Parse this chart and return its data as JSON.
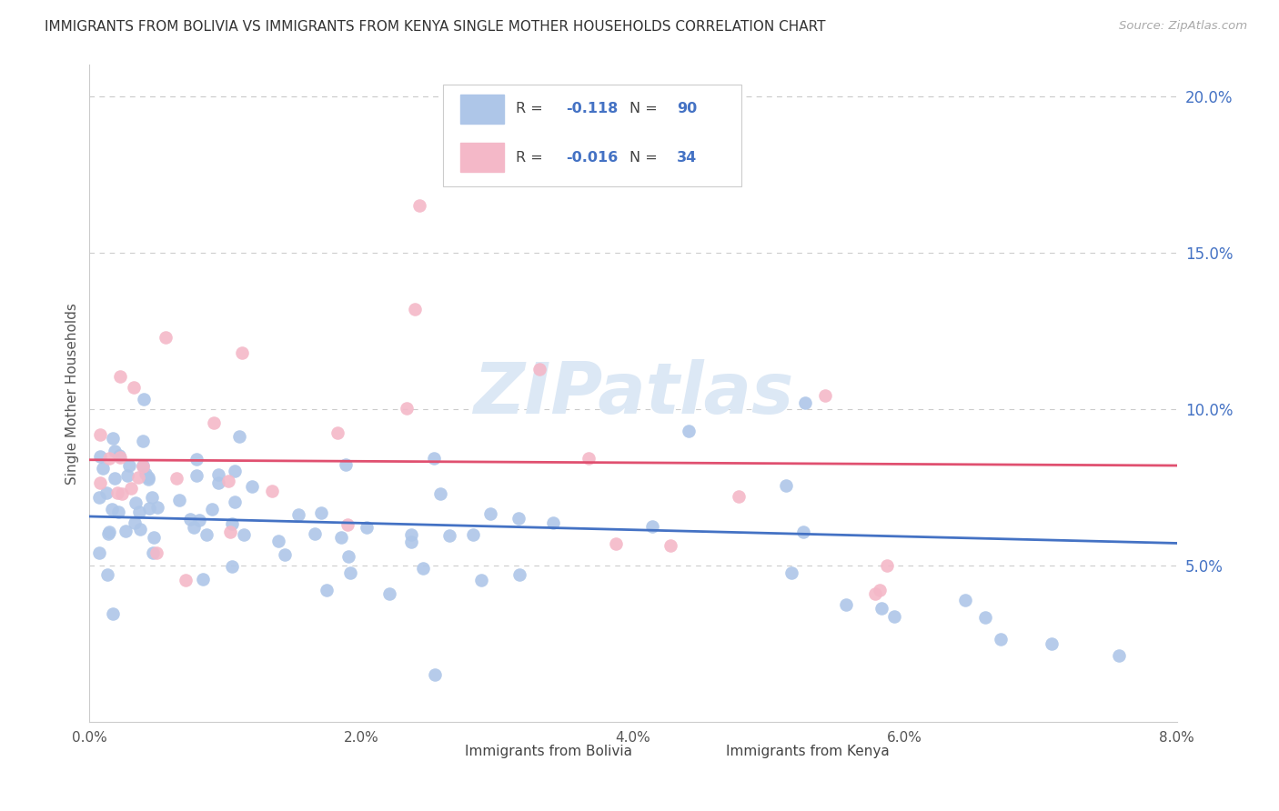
{
  "title": "IMMIGRANTS FROM BOLIVIA VS IMMIGRANTS FROM KENYA SINGLE MOTHER HOUSEHOLDS CORRELATION CHART",
  "source": "Source: ZipAtlas.com",
  "xlabel_bolivia": "Immigrants from Bolivia",
  "xlabel_kenya": "Immigrants from Kenya",
  "ylabel": "Single Mother Households",
  "xlim": [
    0.0,
    0.08
  ],
  "ylim": [
    0.0,
    0.21
  ],
  "xticks": [
    0.0,
    0.02,
    0.04,
    0.06,
    0.08
  ],
  "yticks_right": [
    0.05,
    0.1,
    0.15,
    0.2
  ],
  "bolivia_color": "#aec6e8",
  "kenya_color": "#f4b8c8",
  "trend_line_color_blue": "#4472c4",
  "trend_line_color_pink": "#e05070",
  "bolivia_R": -0.118,
  "bolivia_N": 90,
  "kenya_R": -0.016,
  "kenya_N": 34,
  "background_color": "#ffffff",
  "grid_color": "#cccccc",
  "axis_label_color": "#4472c4",
  "watermark_color": "#dce8f5",
  "watermark": "ZIPatlas"
}
